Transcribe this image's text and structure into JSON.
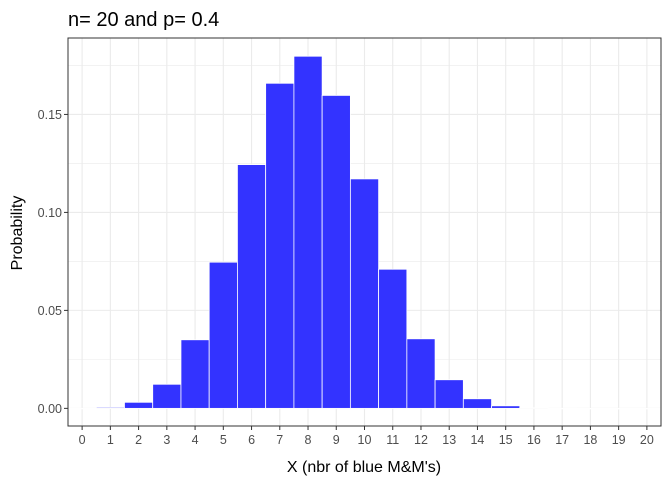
{
  "chart_data": {
    "type": "bar",
    "title": "n= 20 and p= 0.4",
    "xlabel": "X (nbr of blue M&M's)",
    "ylabel": "Probability",
    "categories": [
      "0",
      "1",
      "2",
      "3",
      "4",
      "5",
      "6",
      "7",
      "8",
      "9",
      "10",
      "11",
      "12",
      "13",
      "14",
      "15",
      "16",
      "17",
      "18",
      "19",
      "20"
    ],
    "values": [
      4e-05,
      0.0005,
      0.0031,
      0.0123,
      0.035,
      0.0746,
      0.1244,
      0.1659,
      0.1797,
      0.1597,
      0.1171,
      0.071,
      0.0355,
      0.0146,
      0.0049,
      0.0013,
      0.0003,
      4e-05,
      5e-06,
      3e-07,
      1e-08
    ],
    "yticks": [
      0.0,
      0.05,
      0.1,
      0.15
    ],
    "ytick_labels": [
      "0.00",
      "0.05",
      "0.10",
      "0.15"
    ],
    "ylim": [
      -0.009,
      0.189
    ],
    "xlim": [
      -0.5,
      20.5
    ],
    "bar_color": "#3333ff",
    "bar_edge_color": "#ffffff",
    "grid": true,
    "panel_border": true
  }
}
